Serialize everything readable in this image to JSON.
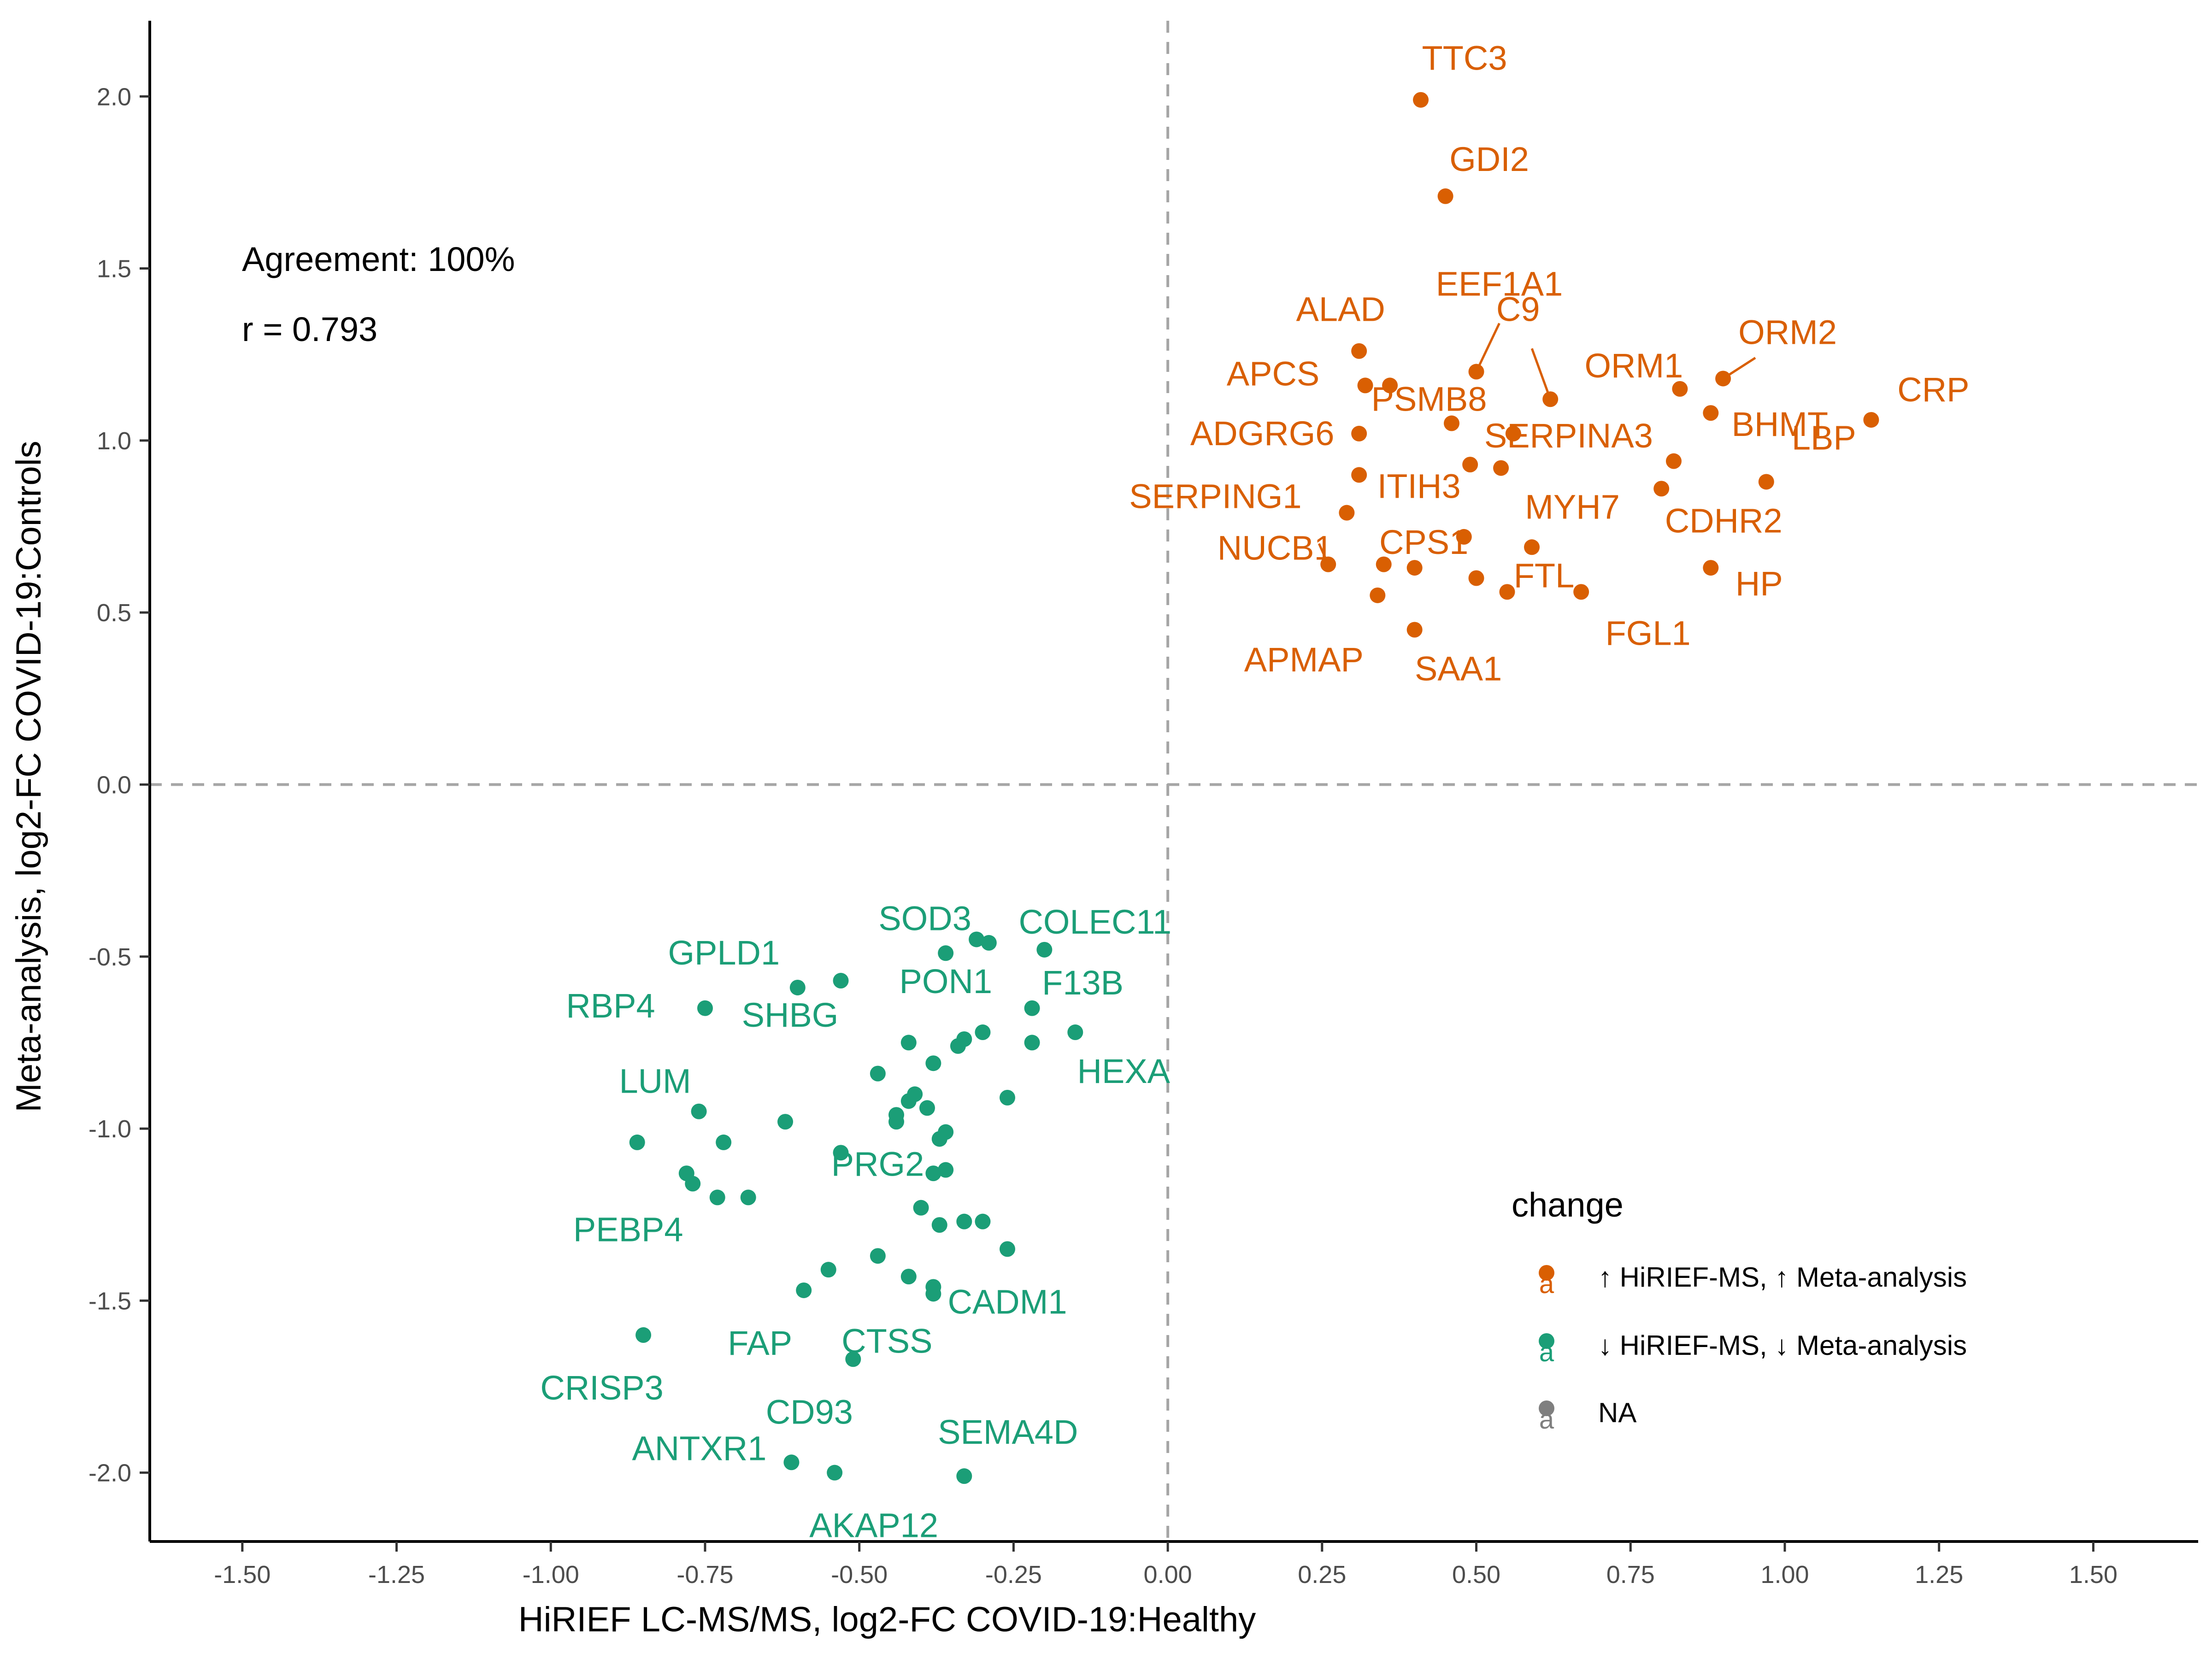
{
  "chart_data": {
    "type": "scatter",
    "xlabel": "HiRIEF LC-MS/MS, log2-FC COVID-19:Healthy",
    "ylabel": "Meta-analysis, log2-FC COVID-19:Controls",
    "xlim": [
      -1.65,
      1.67
    ],
    "ylim": [
      -2.2,
      2.22
    ],
    "x_ticks": [
      -1.5,
      -1.25,
      -1.0,
      -0.75,
      -0.5,
      -0.25,
      0.0,
      0.25,
      0.5,
      0.75,
      1.0,
      1.25,
      1.5
    ],
    "x_tick_labels": [
      "-1.50",
      "-1.25",
      "-1.00",
      "-0.75",
      "-0.50",
      "-0.25",
      "0.00",
      "0.25",
      "0.50",
      "0.75",
      "1.00",
      "1.25",
      "1.50"
    ],
    "y_ticks": [
      -2.0,
      -1.5,
      -1.0,
      -0.5,
      0.0,
      0.5,
      1.0,
      1.5,
      2.0
    ],
    "y_tick_labels": [
      "-2.0",
      "-1.5",
      "-1.0",
      "-0.5",
      "0.0",
      "0.5",
      "1.0",
      "1.5",
      "2.0"
    ],
    "reference_lines": {
      "x": 0,
      "y": 0,
      "style": "dashed"
    },
    "grid": false,
    "annotations": [
      "Agreement: 100%",
      "r = 0.793"
    ],
    "legend": {
      "title": "change",
      "position": "right",
      "entries": [
        {
          "label": "↑ HiRIEF-MS, ↑ Meta-analysis",
          "color": "#D95F02"
        },
        {
          "label": "↓ HiRIEF-MS, ↓ Meta-analysis",
          "color": "#1B9E77"
        },
        {
          "label": "NA",
          "color": "#7F7F7F"
        }
      ]
    },
    "series": [
      {
        "group": "up",
        "color": "#D95F02",
        "points": [
          [
            0.41,
            1.99
          ],
          [
            0.45,
            1.71
          ],
          [
            0.5,
            1.2
          ],
          [
            0.62,
            1.12
          ],
          [
            0.31,
            1.26
          ],
          [
            0.32,
            1.16
          ],
          [
            0.36,
            1.16
          ],
          [
            0.46,
            1.05
          ],
          [
            0.56,
            1.02
          ],
          [
            0.31,
            1.02
          ],
          [
            0.31,
            0.9
          ],
          [
            0.49,
            0.93
          ],
          [
            0.54,
            0.92
          ],
          [
            0.29,
            0.79
          ],
          [
            0.26,
            0.64
          ],
          [
            0.35,
            0.64
          ],
          [
            0.4,
            0.63
          ],
          [
            0.48,
            0.72
          ],
          [
            0.59,
            0.69
          ],
          [
            0.5,
            0.6
          ],
          [
            0.55,
            0.56
          ],
          [
            0.67,
            0.56
          ],
          [
            0.34,
            0.55
          ],
          [
            0.4,
            0.45
          ],
          [
            0.83,
            1.15
          ],
          [
            0.9,
            1.18
          ],
          [
            0.88,
            1.08
          ],
          [
            1.14,
            1.06
          ],
          [
            0.82,
            0.94
          ],
          [
            0.8,
            0.86
          ],
          [
            0.97,
            0.88
          ],
          [
            0.88,
            0.63
          ]
        ],
        "labels": [
          {
            "text": "TTC3",
            "x": 0.41,
            "y": 1.99
          },
          {
            "text": "GDI2",
            "x": 0.45,
            "y": 1.71
          },
          {
            "text": "EEF1A1",
            "x": 0.5,
            "y": 1.2
          },
          {
            "text": "C9",
            "x": 0.62,
            "y": 1.12
          },
          {
            "text": "ALAD",
            "x": 0.31,
            "y": 1.26
          },
          {
            "text": "APCS",
            "x": 0.32,
            "y": 1.16
          },
          {
            "text": "PSMB8",
            "x": 0.36,
            "y": 1.16
          },
          {
            "text": "ADGRG6",
            "x": 0.31,
            "y": 1.02
          },
          {
            "text": "SERPINA3",
            "x": 0.56,
            "y": 1.02
          },
          {
            "text": "ITIH3",
            "x": 0.31,
            "y": 0.9
          },
          {
            "text": "MYH7",
            "x": 0.54,
            "y": 0.92
          },
          {
            "text": "SERPING1",
            "x": 0.29,
            "y": 0.79
          },
          {
            "text": "NUCB1",
            "x": 0.26,
            "y": 0.64
          },
          {
            "text": "CPS1",
            "x": 0.4,
            "y": 0.63
          },
          {
            "text": "FTL",
            "x": 0.55,
            "y": 0.56
          },
          {
            "text": "FGL1",
            "x": 0.67,
            "y": 0.56
          },
          {
            "text": "APMAP",
            "x": 0.34,
            "y": 0.55
          },
          {
            "text": "SAA1",
            "x": 0.4,
            "y": 0.45
          },
          {
            "text": "ORM1",
            "x": 0.83,
            "y": 1.15
          },
          {
            "text": "ORM2",
            "x": 0.9,
            "y": 1.18
          },
          {
            "text": "BHMT",
            "x": 0.88,
            "y": 1.08
          },
          {
            "text": "CRP",
            "x": 1.14,
            "y": 1.06
          },
          {
            "text": "LBP",
            "x": 0.97,
            "y": 0.88
          },
          {
            "text": "CDHR2",
            "x": 0.8,
            "y": 0.86
          },
          {
            "text": "HP",
            "x": 0.88,
            "y": 0.63
          }
        ]
      },
      {
        "group": "down",
        "color": "#1B9E77",
        "points": [
          [
            -0.36,
            -0.49
          ],
          [
            -0.31,
            -0.45
          ],
          [
            -0.29,
            -0.46
          ],
          [
            -0.2,
            -0.48
          ],
          [
            -0.6,
            -0.59
          ],
          [
            -0.53,
            -0.57
          ],
          [
            -0.75,
            -0.65
          ],
          [
            -0.22,
            -0.65
          ],
          [
            -0.42,
            -0.75
          ],
          [
            -0.33,
            -0.74
          ],
          [
            -0.3,
            -0.72
          ],
          [
            -0.34,
            -0.76
          ],
          [
            -0.22,
            -0.75
          ],
          [
            -0.15,
            -0.72
          ],
          [
            -0.38,
            -0.81
          ],
          [
            -0.47,
            -0.84
          ],
          [
            -0.41,
            -0.9
          ],
          [
            -0.42,
            -0.92
          ],
          [
            -0.39,
            -0.94
          ],
          [
            -0.44,
            -0.96
          ],
          [
            -0.44,
            -0.98
          ],
          [
            -0.26,
            -0.91
          ],
          [
            -0.76,
            -0.95
          ],
          [
            -0.62,
            -0.98
          ],
          [
            -0.36,
            -1.01
          ],
          [
            -0.37,
            -1.03
          ],
          [
            -0.86,
            -1.04
          ],
          [
            -0.72,
            -1.04
          ],
          [
            -0.53,
            -1.07
          ],
          [
            -0.78,
            -1.13
          ],
          [
            -0.77,
            -1.16
          ],
          [
            -0.73,
            -1.2
          ],
          [
            -0.68,
            -1.2
          ],
          [
            -0.38,
            -1.13
          ],
          [
            -0.36,
            -1.12
          ],
          [
            -0.4,
            -1.23
          ],
          [
            -0.37,
            -1.28
          ],
          [
            -0.33,
            -1.27
          ],
          [
            -0.3,
            -1.27
          ],
          [
            -0.26,
            -1.35
          ],
          [
            -0.47,
            -1.37
          ],
          [
            -0.55,
            -1.41
          ],
          [
            -0.42,
            -1.43
          ],
          [
            -0.38,
            -1.46
          ],
          [
            -0.38,
            -1.48
          ],
          [
            -0.59,
            -1.47
          ],
          [
            -0.85,
            -1.6
          ],
          [
            -0.51,
            -1.67
          ],
          [
            -0.61,
            -1.97
          ],
          [
            -0.54,
            -2.0
          ],
          [
            -0.33,
            -2.01
          ]
        ],
        "labels": [
          {
            "text": "SOD3",
            "x": -0.36,
            "y": -0.49
          },
          {
            "text": "COLEC11",
            "x": -0.2,
            "y": -0.48
          },
          {
            "text": "GPLD1",
            "x": -0.6,
            "y": -0.59
          },
          {
            "text": "PON1",
            "x": -0.33,
            "y": -0.74
          },
          {
            "text": "F13B",
            "x": -0.22,
            "y": -0.65
          },
          {
            "text": "RBP4",
            "x": -0.75,
            "y": -0.65
          },
          {
            "text": "SHBG",
            "x": -0.53,
            "y": -0.57
          },
          {
            "text": "HEXA",
            "x": -0.15,
            "y": -0.72
          },
          {
            "text": "LUM",
            "x": -0.76,
            "y": -0.95
          },
          {
            "text": "PRG2",
            "x": -0.53,
            "y": -1.07
          },
          {
            "text": "PEBP4",
            "x": -0.77,
            "y": -1.16
          },
          {
            "text": "CADM1",
            "x": -0.26,
            "y": -1.35
          },
          {
            "text": "FAP",
            "x": -0.59,
            "y": -1.47
          },
          {
            "text": "CTSS",
            "x": -0.47,
            "y": -1.37
          },
          {
            "text": "CRISP3",
            "x": -0.85,
            "y": -1.6
          },
          {
            "text": "CD93",
            "x": -0.51,
            "y": -1.67
          },
          {
            "text": "ANTXR1",
            "x": -0.61,
            "y": -1.97
          },
          {
            "text": "SEMA4D",
            "x": -0.33,
            "y": -2.01
          },
          {
            "text": "AKAP12",
            "x": -0.54,
            "y": -2.0
          }
        ]
      }
    ]
  }
}
